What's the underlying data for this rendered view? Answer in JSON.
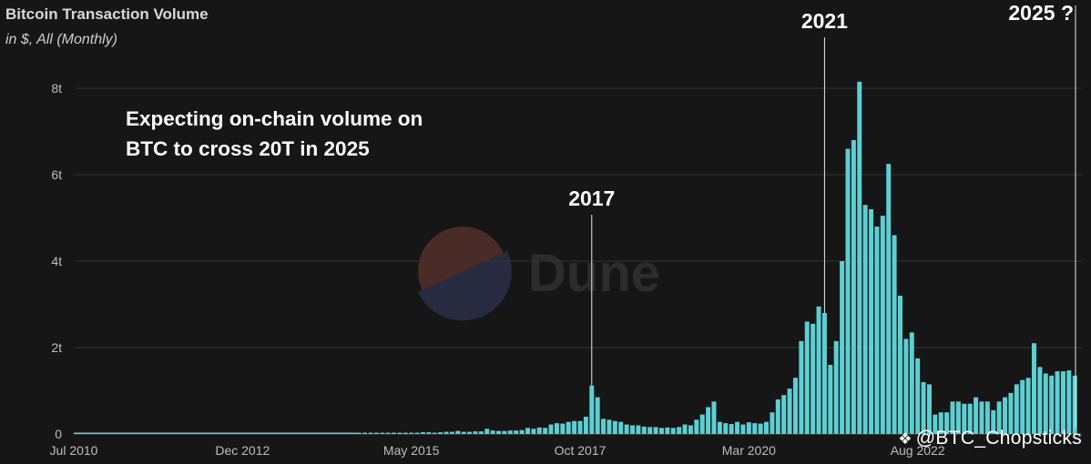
{
  "header": {
    "title": "Bitcoin Transaction Volume",
    "subtitle": "in $, All (Monthly)"
  },
  "annotation": {
    "line1": "Expecting on-chain volume on",
    "line2": "BTC to cross 20T in 2025"
  },
  "watermark": {
    "text": "Dune"
  },
  "credit": {
    "icon": "binance-logo-icon",
    "handle": "@BTC_Chopsticks"
  },
  "colors": {
    "background": "#161616",
    "bar": "#5ccfd3",
    "grid": "#3a3a3a",
    "text": "#bdbdbd"
  },
  "chart_data": {
    "type": "bar",
    "title": "Bitcoin Transaction Volume",
    "subtitle": "in $, All (Monthly)",
    "x_start": "Jul 2010",
    "x_end": "Jan 2024",
    "x_ticks": [
      "Jul 2010",
      "Dec 2012",
      "May 2015",
      "Oct 2017",
      "Mar 2020",
      "Aug 2022"
    ],
    "y_ticks": [
      "0",
      "2t",
      "4t",
      "6t",
      "8t"
    ],
    "ylim": [
      0,
      8.5
    ],
    "y_unit": "t",
    "grid": true,
    "events": [
      {
        "label": "2017",
        "x": "Dec 2017"
      },
      {
        "label": "2021",
        "x": "Apr 2021"
      },
      {
        "label": "2025 ?",
        "x": "Jan 2025"
      }
    ],
    "points": [
      [
        "Aug 2014",
        0.03
      ],
      [
        "Sep 2014",
        0.03
      ],
      [
        "Oct 2014",
        0.03
      ],
      [
        "Nov 2014",
        0.03
      ],
      [
        "Dec 2014",
        0.03
      ],
      [
        "Jan 2015",
        0.03
      ],
      [
        "Feb 2015",
        0.03
      ],
      [
        "Mar 2015",
        0.03
      ],
      [
        "Apr 2015",
        0.03
      ],
      [
        "May 2015",
        0.03
      ],
      [
        "Jun 2015",
        0.03
      ],
      [
        "Jul 2015",
        0.04
      ],
      [
        "Aug 2015",
        0.04
      ],
      [
        "Sep 2015",
        0.03
      ],
      [
        "Oct 2015",
        0.04
      ],
      [
        "Nov 2015",
        0.05
      ],
      [
        "Dec 2015",
        0.05
      ],
      [
        "Jan 2016",
        0.07
      ],
      [
        "Feb 2016",
        0.05
      ],
      [
        "Mar 2016",
        0.05
      ],
      [
        "Apr 2016",
        0.06
      ],
      [
        "May 2016",
        0.06
      ],
      [
        "Jun 2016",
        0.12
      ],
      [
        "Jul 2016",
        0.08
      ],
      [
        "Aug 2016",
        0.07
      ],
      [
        "Sep 2016",
        0.07
      ],
      [
        "Oct 2016",
        0.08
      ],
      [
        "Nov 2016",
        0.08
      ],
      [
        "Dec 2016",
        0.09
      ],
      [
        "Jan 2017",
        0.14
      ],
      [
        "Feb 2017",
        0.12
      ],
      [
        "Mar 2017",
        0.15
      ],
      [
        "Apr 2017",
        0.14
      ],
      [
        "May 2017",
        0.22
      ],
      [
        "Jun 2017",
        0.25
      ],
      [
        "Jul 2017",
        0.24
      ],
      [
        "Aug 2017",
        0.28
      ],
      [
        "Sep 2017",
        0.3
      ],
      [
        "Oct 2017",
        0.3
      ],
      [
        "Nov 2017",
        0.4
      ],
      [
        "Dec 2017",
        1.12
      ],
      [
        "Jan 2018",
        0.85
      ],
      [
        "Feb 2018",
        0.35
      ],
      [
        "Mar 2018",
        0.33
      ],
      [
        "Apr 2018",
        0.3
      ],
      [
        "May 2018",
        0.28
      ],
      [
        "Jun 2018",
        0.22
      ],
      [
        "Jul 2018",
        0.2
      ],
      [
        "Aug 2018",
        0.2
      ],
      [
        "Sep 2018",
        0.17
      ],
      [
        "Oct 2018",
        0.16
      ],
      [
        "Nov 2018",
        0.16
      ],
      [
        "Dec 2018",
        0.14
      ],
      [
        "Jan 2019",
        0.15
      ],
      [
        "Feb 2019",
        0.14
      ],
      [
        "Mar 2019",
        0.16
      ],
      [
        "Apr 2019",
        0.22
      ],
      [
        "May 2019",
        0.2
      ],
      [
        "Jun 2019",
        0.33
      ],
      [
        "Jul 2019",
        0.45
      ],
      [
        "Aug 2019",
        0.62
      ],
      [
        "Sep 2019",
        0.75
      ],
      [
        "Oct 2019",
        0.28
      ],
      [
        "Nov 2019",
        0.25
      ],
      [
        "Dec 2019",
        0.23
      ],
      [
        "Jan 2020",
        0.28
      ],
      [
        "Feb 2020",
        0.22
      ],
      [
        "Mar 2020",
        0.27
      ],
      [
        "Apr 2020",
        0.25
      ],
      [
        "May 2020",
        0.24
      ],
      [
        "Jun 2020",
        0.28
      ],
      [
        "Jul 2020",
        0.5
      ],
      [
        "Aug 2020",
        0.8
      ],
      [
        "Sep 2020",
        0.9
      ],
      [
        "Oct 2020",
        1.05
      ],
      [
        "Nov 2020",
        1.3
      ],
      [
        "Dec 2020",
        2.15
      ],
      [
        "Jan 2021",
        2.6
      ],
      [
        "Feb 2021",
        2.55
      ],
      [
        "Mar 2021",
        2.95
      ],
      [
        "Apr 2021",
        2.8
      ],
      [
        "May 2021",
        1.6
      ],
      [
        "Jun 2021",
        2.15
      ],
      [
        "Jul 2021",
        4.0
      ],
      [
        "Aug 2021",
        6.6
      ],
      [
        "Sep 2021",
        6.8
      ],
      [
        "Oct 2021",
        8.15
      ],
      [
        "Nov 2021",
        5.3
      ],
      [
        "Dec 2021",
        5.2
      ],
      [
        "Jan 2022",
        4.8
      ],
      [
        "Feb 2022",
        5.05
      ],
      [
        "Mar 2022",
        6.25
      ],
      [
        "Apr 2022",
        4.6
      ],
      [
        "May 2022",
        3.2
      ],
      [
        "Jun 2022",
        2.2
      ],
      [
        "Jul 2022",
        2.35
      ],
      [
        "Aug 2022",
        1.75
      ],
      [
        "Sep 2022",
        1.2
      ],
      [
        "Oct 2022",
        1.15
      ],
      [
        "Nov 2022",
        0.45
      ],
      [
        "Dec 2022",
        0.5
      ],
      [
        "Jan 2023",
        0.5
      ],
      [
        "Feb 2023",
        0.75
      ],
      [
        "Mar 2023",
        0.75
      ],
      [
        "Apr 2023",
        0.7
      ],
      [
        "May 2023",
        0.7
      ],
      [
        "Jun 2023",
        0.85
      ],
      [
        "Jul 2023",
        0.75
      ],
      [
        "Aug 2023",
        0.75
      ],
      [
        "Sep 2023",
        0.55
      ],
      [
        "Oct 2023",
        0.75
      ],
      [
        "Nov 2023",
        0.85
      ],
      [
        "Dec 2023",
        0.95
      ],
      [
        "Jan 2024",
        1.15
      ],
      [
        "Feb 2024",
        1.25
      ],
      [
        "Mar 2024",
        1.3
      ],
      [
        "Apr 2024",
        2.1
      ],
      [
        "May 2024",
        1.55
      ],
      [
        "Jun 2024",
        1.4
      ],
      [
        "Jul 2024",
        1.35
      ],
      [
        "Aug 2024",
        1.45
      ],
      [
        "Sep 2024",
        1.45
      ],
      [
        "Oct 2024",
        1.47
      ],
      [
        "Nov 2024",
        1.35
      ]
    ]
  }
}
